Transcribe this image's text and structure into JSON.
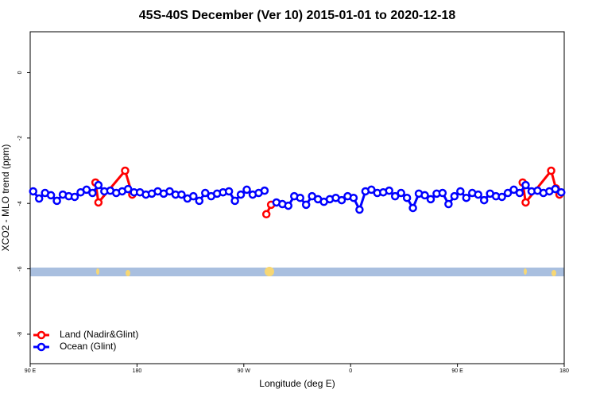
{
  "chart_data": {
    "type": "line",
    "title": "45S-40S December (Ver 10)   2015-01-01 to 2020-12-18",
    "x_label": "Longitude (deg E)",
    "y_label": "XCO2 - MLO trend (ppm)",
    "xlim": [
      90,
      540
    ],
    "ylim": [
      -8.9,
      1.25
    ],
    "xticks": [
      {
        "value": 90,
        "label": "90 E"
      },
      {
        "value": 180,
        "label": "180"
      },
      {
        "value": 270,
        "label": "90 W"
      },
      {
        "value": 360,
        "label": "0"
      },
      {
        "value": 450,
        "label": "90 E"
      },
      {
        "value": 540,
        "label": "180"
      }
    ],
    "yticks": [
      0,
      -2,
      -4,
      -6,
      -8
    ],
    "legend": "bottom-left",
    "series": [
      {
        "name": "Land (Nadir&Glint)",
        "color": "#ff0000",
        "x": [
          145,
          147.5,
          170,
          176,
          null,
          289,
          293,
          null,
          505,
          507.5,
          529,
          533,
          536
        ],
        "values": [
          -3.36,
          -3.97,
          -3.0,
          -3.73,
          null,
          -4.33,
          -4.04,
          null,
          -3.36,
          -3.97,
          -3.0,
          -3.54,
          -3.73
        ]
      },
      {
        "name": "Ocean (Glint)",
        "color": "#0000ff",
        "x": [
          92.5,
          97.5,
          102.5,
          107.5,
          112.5,
          117.5,
          122.5,
          127.5,
          132.5,
          137.5,
          142.5,
          147.5,
          152.5,
          157.5,
          162.5,
          167.5,
          172.5,
          177.5,
          182.5,
          187.5,
          192.5,
          197.5,
          202.5,
          207.5,
          212.5,
          217.5,
          222.5,
          227.5,
          232.5,
          237.5,
          242.5,
          247.5,
          252.5,
          257.5,
          262.5,
          267.5,
          272.5,
          277.5,
          282.5,
          287.5,
          292.5,
          297.5,
          302.5,
          307.5,
          312.5,
          317.5,
          322.5,
          327.5,
          332.5,
          337.5,
          342.5,
          347.5,
          352.5,
          357.5,
          362.5,
          367.5,
          372.5,
          377.5,
          382.5,
          387.5,
          392.5,
          397.5,
          402.5,
          407.5,
          412.5,
          417.5,
          422.5,
          427.5,
          432.5,
          437.5,
          442.5,
          447.5,
          452.5,
          457.5,
          462.5,
          467.5,
          472.5,
          477.5,
          482.5,
          487.5,
          492.5,
          497.5,
          502.5,
          507.5,
          512.5,
          517.5,
          522.5,
          527.5,
          532.5,
          537.5
        ],
        "values": [
          -3.63,
          -3.85,
          -3.68,
          -3.75,
          -3.92,
          -3.73,
          -3.78,
          -3.8,
          -3.66,
          -3.58,
          -3.68,
          -3.44,
          -3.63,
          -3.61,
          -3.68,
          -3.63,
          -3.56,
          -3.66,
          -3.66,
          -3.73,
          -3.7,
          -3.63,
          -3.7,
          -3.63,
          -3.73,
          -3.73,
          -3.85,
          -3.78,
          -3.92,
          -3.68,
          -3.78,
          -3.7,
          -3.66,
          -3.63,
          -3.92,
          -3.73,
          -3.58,
          -3.73,
          -3.68,
          -3.61,
          null,
          -3.97,
          -4.02,
          -4.07,
          -3.78,
          -3.83,
          -4.04,
          -3.78,
          -3.87,
          -3.95,
          -3.87,
          -3.83,
          -3.9,
          -3.78,
          -3.83,
          -4.19,
          -3.63,
          -3.58,
          -3.68,
          -3.66,
          -3.61,
          -3.78,
          -3.68,
          -3.83,
          -4.14,
          -3.7,
          -3.75,
          -3.87,
          -3.7,
          -3.68,
          -4.02,
          -3.78,
          -3.63,
          -3.83,
          -3.68,
          -3.73,
          -3.9,
          -3.7,
          -3.78,
          -3.8,
          -3.68,
          -3.58,
          -3.68,
          -3.44,
          -3.63,
          -3.61,
          -3.68,
          -3.63,
          -3.56,
          -3.66
        ]
      }
    ]
  }
}
